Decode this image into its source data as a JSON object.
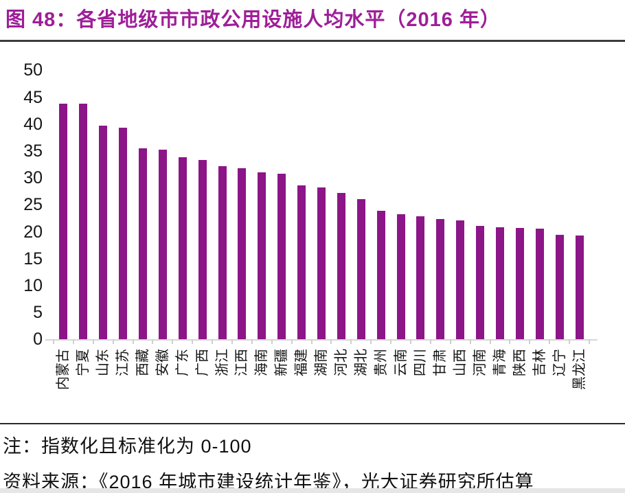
{
  "title": "图 48：各省地级市市政公用设施人均水平（2016 年）",
  "colors": {
    "title": "#9e1e98",
    "bar": "#8c1588",
    "axis_text": "#161616",
    "baseline": "#d6d6d6",
    "divider": "#3c3c3c"
  },
  "chart_data": {
    "type": "bar",
    "title": "各省地级市市政公用设施人均水平（2016 年）",
    "categories": [
      "内蒙古",
      "宁夏",
      "山东",
      "江苏",
      "西藏",
      "安徽",
      "广东",
      "广西",
      "浙江",
      "江西",
      "海南",
      "新疆",
      "福建",
      "湖南",
      "河北",
      "湖北",
      "贵州",
      "云南",
      "四川",
      "甘肃",
      "山西",
      "河南",
      "青海",
      "陕西",
      "吉林",
      "辽宁",
      "黑龙江"
    ],
    "values": [
      43.8,
      43.7,
      39.7,
      39.3,
      35.4,
      35.2,
      33.8,
      33.3,
      32.1,
      31.7,
      31.0,
      30.8,
      28.6,
      28.2,
      27.2,
      26.0,
      23.9,
      23.2,
      22.8,
      22.3,
      22.1,
      21.1,
      20.8,
      20.6,
      20.5,
      19.4,
      19.2
    ],
    "xlabel": "",
    "ylabel": "",
    "ylim": [
      0,
      50
    ],
    "y_ticks": [
      0,
      5,
      10,
      15,
      20,
      25,
      30,
      35,
      40,
      45,
      50
    ],
    "grid": false,
    "legend": false,
    "bar_orientation": "vertical",
    "x_label_rotation_deg": 90
  },
  "footer": {
    "note": "注：指数化且标准化为 0-100",
    "source": "资料来源：《2016 年城市建设统计年鉴》，光大证券研究所估算"
  }
}
